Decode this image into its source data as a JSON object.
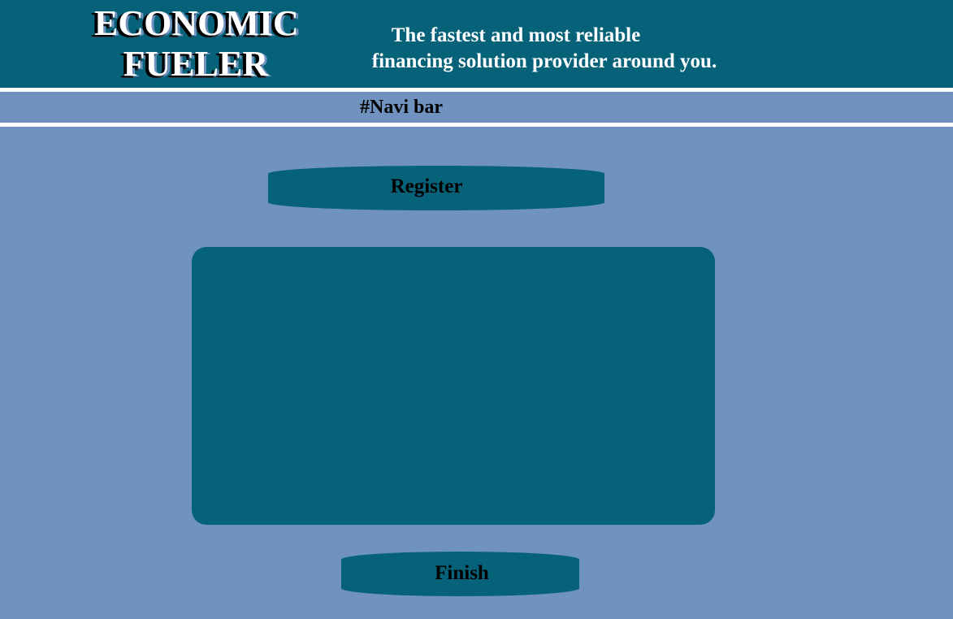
{
  "header": {
    "logo_line1": "ECONOMIC",
    "logo_line2": "FUELER",
    "tagline_line1": "The fastest and most reliable",
    "tagline_line2": "financing solution provider around you."
  },
  "navbar": {
    "label": "#Navi bar"
  },
  "register": {
    "label": "Register"
  },
  "finish": {
    "label": "Finish"
  },
  "colors": {
    "header_bg": "#066278",
    "page_bg": "#6f92bf",
    "separator": "#ffffff",
    "text_dark": "#000000",
    "text_light": "#ffffff"
  }
}
